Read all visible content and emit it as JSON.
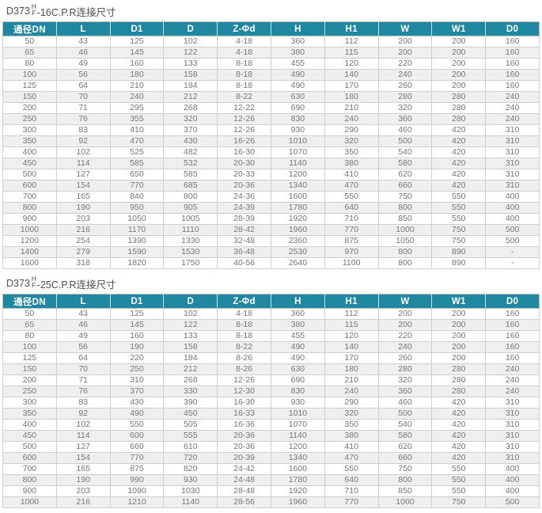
{
  "colors": {
    "header_bg": "#1f87a0",
    "header_text": "#ffffff",
    "row_alt_bg": "#efeff0",
    "grid_border": "#cfcfcf",
    "data_text": "#767676",
    "title_text": "#4d4d4d"
  },
  "tables": [
    {
      "title": {
        "model": "D373",
        "stack_top": "H",
        "stack_bottom": "F",
        "suffix": "-16C.P.R连接尺寸"
      },
      "headers": [
        "通径DN",
        "L",
        "D1",
        "D",
        "Z-Φd",
        "H",
        "H1",
        "W",
        "W1",
        "D0"
      ],
      "rows": [
        [
          "50",
          "43",
          "125",
          "102",
          "4-18",
          "360",
          "112",
          "200",
          "200",
          "160"
        ],
        [
          "65",
          "46",
          "145",
          "122",
          "4-18",
          "380",
          "115",
          "200",
          "200",
          "160"
        ],
        [
          "80",
          "49",
          "160",
          "133",
          "8-18",
          "455",
          "120",
          "220",
          "200",
          "160"
        ],
        [
          "100",
          "56",
          "180",
          "158",
          "8-18",
          "490",
          "140",
          "240",
          "200",
          "160"
        ],
        [
          "125",
          "64",
          "210",
          "184",
          "8-18",
          "490",
          "170",
          "260",
          "200",
          "160"
        ],
        [
          "150",
          "70",
          "240",
          "212",
          "8-22",
          "630",
          "180",
          "280",
          "280",
          "240"
        ],
        [
          "200",
          "71",
          "295",
          "268",
          "12-22",
          "690",
          "210",
          "320",
          "280",
          "240"
        ],
        [
          "250",
          "76",
          "355",
          "320",
          "12-26",
          "830",
          "240",
          "360",
          "280",
          "240"
        ],
        [
          "300",
          "83",
          "410",
          "370",
          "12-26",
          "930",
          "290",
          "460",
          "420",
          "310"
        ],
        [
          "350",
          "92",
          "470",
          "430",
          "16-26",
          "1010",
          "320",
          "500",
          "420",
          "310"
        ],
        [
          "400",
          "102",
          "525",
          "482",
          "16-30",
          "1070",
          "350",
          "540",
          "420",
          "310"
        ],
        [
          "450",
          "114",
          "585",
          "532",
          "20-30",
          "1140",
          "380",
          "580",
          "420",
          "310"
        ],
        [
          "500",
          "127",
          "650",
          "585",
          "20-33",
          "1200",
          "410",
          "620",
          "420",
          "310"
        ],
        [
          "600",
          "154",
          "770",
          "685",
          "20-36",
          "1340",
          "470",
          "660",
          "420",
          "310"
        ],
        [
          "700",
          "165",
          "840",
          "800",
          "24-36",
          "1600",
          "550",
          "750",
          "550",
          "400"
        ],
        [
          "800",
          "190",
          "950",
          "905",
          "24-39",
          "1780",
          "640",
          "800",
          "550",
          "400"
        ],
        [
          "900",
          "203",
          "1050",
          "1005",
          "28-39",
          "1920",
          "710",
          "850",
          "550",
          "400"
        ],
        [
          "1000",
          "216",
          "1170",
          "1110",
          "28-42",
          "1960",
          "770",
          "1000",
          "750",
          "500"
        ],
        [
          "1200",
          "254",
          "1390",
          "1330",
          "32-48",
          "2360",
          "875",
          "1050",
          "750",
          "500"
        ],
        [
          "1400",
          "279",
          "1590",
          "1530",
          "36-48",
          "2530",
          "970",
          "800",
          "890",
          "-"
        ],
        [
          "1600",
          "318",
          "1820",
          "1750",
          "40-56",
          "2640",
          "1100",
          "800",
          "890",
          "-"
        ]
      ]
    },
    {
      "title": {
        "model": "D373",
        "stack_top": "H",
        "stack_bottom": "F",
        "suffix": "-25C.P.R连接尺寸"
      },
      "headers": [
        "通径DN",
        "L",
        "D1",
        "D",
        "Z-Φd",
        "H",
        "H1",
        "W",
        "W1",
        "D0"
      ],
      "rows": [
        [
          "50",
          "43",
          "125",
          "102",
          "4-18",
          "360",
          "112",
          "200",
          "200",
          "160"
        ],
        [
          "65",
          "46",
          "145",
          "122",
          "8-18",
          "380",
          "115",
          "200",
          "200",
          "160"
        ],
        [
          "80",
          "49",
          "160",
          "133",
          "8-18",
          "455",
          "120",
          "220",
          "200",
          "160"
        ],
        [
          "100",
          "56",
          "190",
          "158",
          "8-22",
          "490",
          "140",
          "240",
          "200",
          "160"
        ],
        [
          "125",
          "64",
          "220",
          "184",
          "8-26",
          "490",
          "170",
          "260",
          "200",
          "160"
        ],
        [
          "150",
          "70",
          "250",
          "212",
          "8-26",
          "630",
          "180",
          "280",
          "280",
          "240"
        ],
        [
          "200",
          "71",
          "310",
          "268",
          "12-26",
          "690",
          "210",
          "320",
          "280",
          "240"
        ],
        [
          "250",
          "76",
          "370",
          "330",
          "12-30",
          "830",
          "240",
          "360",
          "280",
          "240"
        ],
        [
          "300",
          "83",
          "430",
          "390",
          "16-30",
          "930",
          "290",
          "460",
          "420",
          "310"
        ],
        [
          "350",
          "92",
          "490",
          "450",
          "16-33",
          "1010",
          "320",
          "500",
          "420",
          "310"
        ],
        [
          "400",
          "102",
          "550",
          "505",
          "16-36",
          "1070",
          "350",
          "540",
          "420",
          "310"
        ],
        [
          "450",
          "114",
          "600",
          "555",
          "20-36",
          "1140",
          "380",
          "580",
          "420",
          "310"
        ],
        [
          "500",
          "127",
          "660",
          "610",
          "20-36",
          "1200",
          "410",
          "620",
          "420",
          "310"
        ],
        [
          "600",
          "154",
          "770",
          "720",
          "20-39",
          "1340",
          "470",
          "660",
          "420",
          "310"
        ],
        [
          "700",
          "165",
          "875",
          "820",
          "24-42",
          "1600",
          "550",
          "750",
          "550",
          "400"
        ],
        [
          "800",
          "190",
          "990",
          "930",
          "24-48",
          "1780",
          "640",
          "800",
          "550",
          "400"
        ],
        [
          "900",
          "203",
          "1090",
          "1030",
          "28-48",
          "1920",
          "710",
          "850",
          "550",
          "400"
        ],
        [
          "1000",
          "216",
          "1210",
          "1140",
          "28-56",
          "1960",
          "770",
          "1000",
          "750",
          "500"
        ]
      ]
    }
  ]
}
